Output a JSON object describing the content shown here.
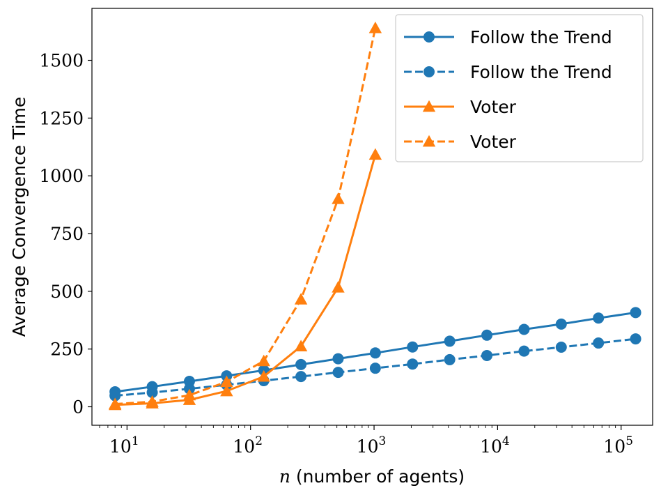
{
  "chart_data": {
    "type": "line",
    "xlabel_var": "n",
    "xlabel_rest": " (number of agents)",
    "ylabel": "Average Convergence Time",
    "xscale": "log",
    "xlim": [
      5.2,
      180000
    ],
    "ylim": [
      -80,
      1725
    ],
    "yticks": [
      0,
      250,
      500,
      750,
      1000,
      1250,
      1500
    ],
    "xticks": [
      {
        "value": 10,
        "base": "10",
        "exp": "1"
      },
      {
        "value": 100,
        "base": "10",
        "exp": "2"
      },
      {
        "value": 1000,
        "base": "10",
        "exp": "3"
      },
      {
        "value": 10000,
        "base": "10",
        "exp": "4"
      },
      {
        "value": 100000,
        "base": "10",
        "exp": "5"
      }
    ],
    "grid": false,
    "legend_position": "top-right",
    "series": [
      {
        "name": "Follow the Trend",
        "color": "#1f77b4",
        "linestyle": "solid",
        "marker": "circle",
        "x": [
          8,
          16,
          32,
          64,
          128,
          256,
          512,
          1024,
          2048,
          4096,
          8192,
          16384,
          32768,
          65536,
          131072
        ],
        "y": [
          65,
          87,
          110,
          134,
          158,
          183,
          208,
          233,
          259,
          284,
          310,
          335,
          358,
          384,
          408
        ]
      },
      {
        "name": "Follow the Trend",
        "color": "#1f77b4",
        "linestyle": "dashed",
        "marker": "circle",
        "x": [
          8,
          16,
          32,
          64,
          128,
          256,
          512,
          1024,
          2048,
          4096,
          8192,
          16384,
          32768,
          65536,
          131072
        ],
        "y": [
          48,
          62,
          78,
          95,
          113,
          131,
          149,
          167,
          185,
          204,
          222,
          241,
          258,
          276,
          294
        ]
      },
      {
        "name": "Voter",
        "color": "#ff7f0e",
        "linestyle": "solid",
        "marker": "triangle",
        "x": [
          8,
          16,
          32,
          64,
          128,
          256,
          512,
          1024
        ],
        "y": [
          8,
          15,
          30,
          68,
          131,
          262,
          517,
          1092
        ]
      },
      {
        "name": "Voter",
        "color": "#ff7f0e",
        "linestyle": "dashed",
        "marker": "triangle",
        "x": [
          8,
          16,
          32,
          64,
          128,
          256,
          512,
          1024
        ],
        "y": [
          12,
          22,
          50,
          108,
          198,
          465,
          900,
          1640
        ]
      }
    ]
  }
}
